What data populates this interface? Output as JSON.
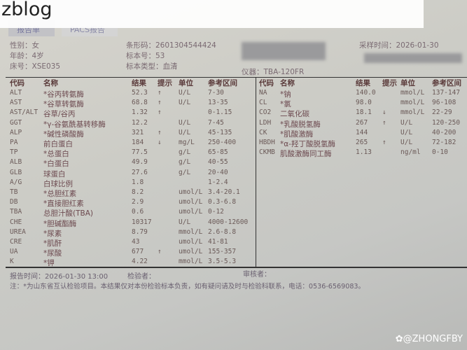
{
  "app": {
    "brand": "zblog"
  },
  "tabs": [
    {
      "label": "报告单"
    },
    {
      "label": "PACS报告"
    }
  ],
  "patient": {
    "gender": "性别：女",
    "age": "年龄：4岁",
    "bed": "床号：XSE035",
    "barcode": "条形码：2601304544424",
    "specimen_no": "标本号：53",
    "specimen_type": "标本类型：血清",
    "instrument": "仪器：TBA-120FR",
    "collect_time": "采样时间：2026-01-30"
  },
  "headers": {
    "code": "代码",
    "name": "名称",
    "result": "结果",
    "flag": "提示",
    "unit": "单位",
    "range": "参考区间"
  },
  "left_rows": [
    [
      "ALT",
      "*谷丙转氨酶",
      "52.3",
      "↑",
      "U/L",
      "7-30"
    ],
    [
      "AST",
      "*谷草转氨酶",
      "68.8",
      "↑",
      "U/L",
      "13-35"
    ],
    [
      "AST/ALT",
      "谷草/谷丙",
      "1.32",
      "↑",
      "",
      "0-1.15"
    ],
    [
      "GGT",
      "*γ-谷氨酰基转移酶",
      "12.2",
      "",
      "U/L",
      "7-45"
    ],
    [
      "ALP",
      "*碱性磷酸酶",
      "321",
      "↑",
      "U/L",
      "45-135"
    ],
    [
      "PA",
      "前白蛋白",
      "184",
      "↓",
      "mg/L",
      "250-400"
    ],
    [
      "TP",
      "*总蛋白",
      "77.5",
      "",
      "g/L",
      "65-85"
    ],
    [
      "ALB",
      "*白蛋白",
      "49.9",
      "",
      "g/L",
      "40-55"
    ],
    [
      "GLB",
      "球蛋白",
      "27.6",
      "",
      "g/L",
      "20-40"
    ],
    [
      "A/G",
      "白球比例",
      "1.8",
      "",
      "",
      "1-2.4"
    ],
    [
      "TB",
      "*总胆红素",
      "8.2",
      "",
      "umol/L",
      "3.4-20.1"
    ],
    [
      "DB",
      "*直接胆红素",
      "2.9",
      "",
      "umol/L",
      "0.3-6.8"
    ],
    [
      "TBA",
      "总胆汁酸(TBA)",
      "0.6",
      "",
      "umol/L",
      "0-12"
    ],
    [
      "CHE",
      "*胆碱酯酶",
      "10317",
      "",
      "U/L",
      "4000-12600"
    ],
    [
      "UREA",
      "*尿素",
      "8.79",
      "",
      "mmol/L",
      "2.6-8.8"
    ],
    [
      "CRE",
      "*肌酐",
      "43",
      "",
      "umol/L",
      "41-81"
    ],
    [
      "UA",
      "*尿酸",
      "677",
      "↑",
      "umol/L",
      "155-357"
    ],
    [
      "K",
      "*钾",
      "4.22",
      "",
      "mmol/L",
      "3.5-5.3"
    ]
  ],
  "right_rows": [
    [
      "NA",
      "*钠",
      "140.0",
      "",
      "mmol/L",
      "137-147"
    ],
    [
      "CL",
      "*氯",
      "98.0",
      "",
      "mmol/L",
      "96-108"
    ],
    [
      "CO2",
      "二氧化碳",
      "18.1",
      "↓",
      "mmol/L",
      "22-29"
    ],
    [
      "LDH",
      "*乳酸脱氢酶",
      "267",
      "↑",
      "U/L",
      "120-250"
    ],
    [
      "CK",
      "*肌酸激酶",
      "144",
      "",
      "U/L",
      "40-200"
    ],
    [
      "HBDH",
      "*α-羟丁酸脱氢酶",
      "265",
      "↑",
      "U/L",
      "72-182"
    ],
    [
      "CKMB",
      "肌酸激酶同工酶",
      "1.13",
      "",
      "ng/ml",
      "0-10"
    ]
  ],
  "footer": {
    "report_time": "报告时间：2026-01-30 13:00",
    "tester_label": "检验者：",
    "reviewer_label": "审核者：",
    "note": "注：*为山东省互认检验项目。本结果仅对本份检验标本负责，如有疑问请及时与检验科联系，电话：0536-6569083。"
  },
  "watermark": "@ZHONGFBY"
}
